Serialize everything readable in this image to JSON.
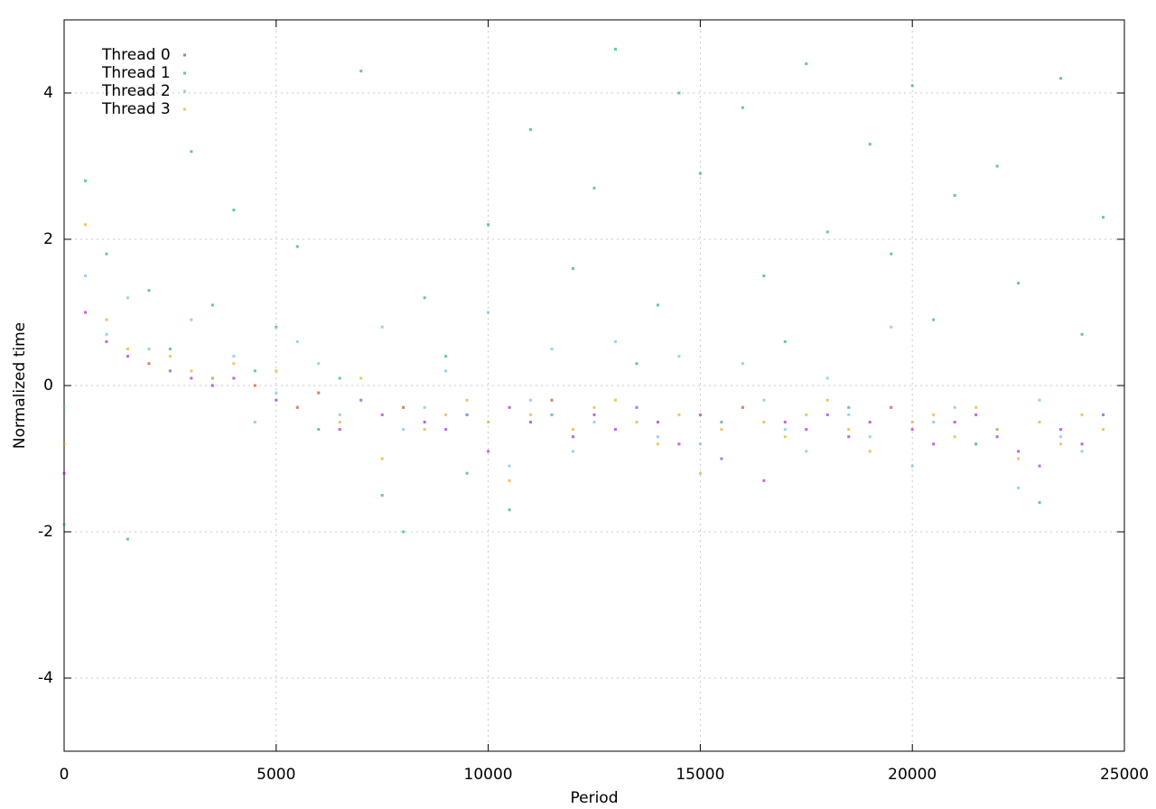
{
  "chart_data": {
    "type": "scatter",
    "x_label": "Period",
    "y_label": "Normalized time",
    "x": [
      0,
      500,
      1000,
      1500,
      2000,
      2500,
      3000,
      3500,
      4000,
      4500,
      5000,
      5500,
      6000,
      6500,
      7000,
      7500,
      8000,
      8500,
      9000,
      9500,
      10000,
      10500,
      11000,
      11500,
      12000,
      12500,
      13000,
      13500,
      14000,
      14500,
      15000,
      15500,
      16000,
      16500,
      17000,
      17500,
      18000,
      18500,
      19000,
      19500,
      20000,
      20500,
      21000,
      21500,
      22000,
      22500,
      23000,
      23500,
      24000,
      24500
    ],
    "series": [
      {
        "name": "Thread 0",
        "color": "#9400d3",
        "values": [
          -1.2,
          1.0,
          0.6,
          0.4,
          0.3,
          0.2,
          0.1,
          0.0,
          0.1,
          0.0,
          -0.2,
          -0.3,
          -0.1,
          -0.6,
          -0.2,
          -0.4,
          -0.3,
          -0.5,
          -0.6,
          -0.4,
          -0.9,
          -0.3,
          -0.5,
          -0.2,
          -0.7,
          -0.4,
          -0.6,
          -0.3,
          -0.5,
          -0.8,
          -0.4,
          -1.0,
          -0.3,
          -1.3,
          -0.5,
          -0.6,
          -0.4,
          -0.7,
          -0.5,
          -0.3,
          -0.6,
          -0.8,
          -0.5,
          -0.4,
          -0.7,
          -0.9,
          -1.1,
          -0.6,
          -0.8,
          -0.4
        ]
      },
      {
        "name": "Thread 1",
        "color": "#009e73",
        "values": [
          -1.9,
          2.8,
          1.8,
          -2.1,
          1.3,
          0.5,
          3.2,
          1.1,
          2.4,
          0.2,
          0.8,
          1.9,
          -0.6,
          0.1,
          4.3,
          -1.5,
          -2.0,
          1.2,
          0.4,
          -1.2,
          2.2,
          -1.7,
          3.5,
          -0.4,
          1.6,
          2.7,
          4.6,
          0.3,
          1.1,
          4.0,
          2.9,
          -0.5,
          3.8,
          1.5,
          0.6,
          4.4,
          2.1,
          -0.3,
          3.3,
          1.8,
          4.1,
          0.9,
          2.6,
          -0.8,
          3.0,
          1.4,
          -1.6,
          4.2,
          0.7,
          2.3
        ]
      },
      {
        "name": "Thread 2",
        "color": "#56b4e9",
        "values": [
          -0.3,
          1.5,
          0.7,
          1.2,
          0.5,
          0.2,
          0.9,
          0.1,
          0.4,
          -0.5,
          -0.1,
          0.6,
          0.3,
          -0.4,
          -0.2,
          0.8,
          -0.6,
          -0.3,
          0.2,
          -0.4,
          1.0,
          -1.1,
          -0.2,
          0.5,
          -0.9,
          -0.5,
          0.6,
          -0.3,
          -0.7,
          0.4,
          -0.8,
          -1.0,
          0.3,
          -0.2,
          -0.6,
          -0.9,
          0.1,
          -0.4,
          -0.7,
          0.8,
          -1.1,
          -0.5,
          -0.3,
          -0.8,
          -0.6,
          -1.4,
          -0.2,
          -0.7,
          -0.9,
          -0.4
        ]
      },
      {
        "name": "Thread 3",
        "color": "#e69f00",
        "values": [
          -0.8,
          2.2,
          0.9,
          0.5,
          0.3,
          0.4,
          0.2,
          0.1,
          0.3,
          0.0,
          0.2,
          -0.3,
          -0.1,
          -0.5,
          0.1,
          -1.0,
          -0.3,
          -0.6,
          -0.4,
          -0.2,
          -0.5,
          -1.3,
          -0.4,
          -0.2,
          -0.6,
          -0.3,
          -0.2,
          -0.5,
          -0.8,
          -0.4,
          -1.2,
          -0.6,
          -0.3,
          -0.5,
          -0.7,
          -0.4,
          -0.2,
          -0.6,
          -0.9,
          -0.3,
          -0.5,
          -0.4,
          -0.7,
          -0.3,
          -0.6,
          -1.0,
          -0.5,
          -0.8,
          -0.4,
          -0.6
        ]
      }
    ],
    "xlim": [
      0,
      25000
    ],
    "xticks": [
      0,
      5000,
      10000,
      15000,
      20000,
      25000
    ],
    "ylim": [
      -5,
      5
    ],
    "yticks": [
      -4,
      -2,
      0,
      2,
      4
    ],
    "grid": true,
    "legend": "top-left"
  }
}
